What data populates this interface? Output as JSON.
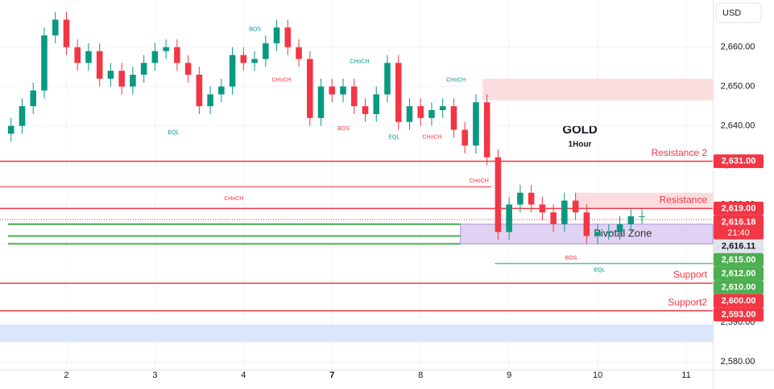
{
  "chart_data": {
    "type": "candlestick",
    "title": "GOLD",
    "subtitle": "1Hour",
    "currency": "USD",
    "xlim": [
      1.25,
      9.3
    ],
    "xticks": [
      2,
      3,
      4,
      {
        "value": 5,
        "label": "7"
      },
      {
        "value": 6,
        "label": "8"
      },
      {
        "value": 7,
        "label": "9"
      },
      {
        "value": 8,
        "label": "10"
      },
      {
        "value": 9,
        "label": "11"
      }
    ],
    "ylim": [
      2578,
      2672
    ],
    "yticks": [
      {
        "value": 2580,
        "label": "2,580.00"
      },
      {
        "value": 2590,
        "label": "2,590.00"
      },
      {
        "value": 2600,
        "label": "2,600.00"
      },
      {
        "value": 2610,
        "label": "2,610.00"
      },
      {
        "value": 2620,
        "label": "2,620.00"
      },
      {
        "value": 2630,
        "label": "2,630.00"
      },
      {
        "value": 2640,
        "label": "2,640.00"
      },
      {
        "value": 2650,
        "label": "2,650.00"
      },
      {
        "value": 2660,
        "label": "2,660.00"
      }
    ],
    "up_color": "#089981",
    "down_color": "#f23645",
    "x": [
      1.375,
      1.5,
      1.625,
      1.75,
      1.875,
      2,
      2.125,
      2.25,
      2.375,
      2.5,
      2.625,
      2.75,
      2.875,
      3,
      3.125,
      3.25,
      3.375,
      3.5,
      3.625,
      3.75,
      3.875,
      4,
      4.125,
      4.25,
      4.375,
      4.5,
      4.625,
      4.75,
      4.875,
      5,
      5.125,
      5.25,
      5.375,
      5.5,
      5.625,
      5.75,
      5.875,
      6,
      6.125,
      6.25,
      6.375,
      6.5,
      6.625,
      6.75,
      6.875,
      7,
      7.125,
      7.25,
      7.375,
      7.5,
      7.625,
      7.75,
      7.875,
      8,
      8.125,
      8.25,
      8.375,
      8.5
    ],
    "open": [
      2638,
      2640,
      2645,
      2649,
      2663,
      2667,
      2660,
      2656,
      2659,
      2652,
      2654,
      2650,
      2653,
      2656,
      2659,
      2660,
      2656,
      2653,
      2645,
      2648,
      2650,
      2658,
      2656,
      2657,
      2661,
      2665,
      2660,
      2657,
      2642,
      2650,
      2648,
      2650,
      2645,
      2643,
      2648,
      2656,
      2641,
      2645,
      2642,
      2644,
      2645,
      2639,
      2635,
      2646,
      2632,
      2613,
      2620,
      2623,
      2620,
      2618,
      2615,
      2621,
      2618,
      2612,
      2613,
      2613,
      2615,
      2617
    ],
    "high": [
      2642,
      2647,
      2651,
      2665,
      2669,
      2669,
      2662,
      2661,
      2661,
      2656,
      2656,
      2655,
      2658,
      2661,
      2662,
      2662,
      2658,
      2655,
      2650,
      2652,
      2660,
      2660,
      2659,
      2663,
      2667,
      2667,
      2662,
      2659,
      2652,
      2652,
      2652,
      2652,
      2647,
      2650,
      2658,
      2658,
      2647,
      2647,
      2646,
      2647,
      2647,
      2641,
      2648,
      2648,
      2634,
      2622,
      2625,
      2625,
      2622,
      2620,
      2623,
      2623,
      2620,
      2615,
      2615,
      2617,
      2619,
      2619
    ],
    "low": [
      2636,
      2638,
      2643,
      2647,
      2661,
      2658,
      2654,
      2654,
      2650,
      2650,
      2648,
      2648,
      2651,
      2654,
      2657,
      2654,
      2651,
      2643,
      2643,
      2646,
      2648,
      2654,
      2654,
      2655,
      2659,
      2658,
      2655,
      2640,
      2640,
      2646,
      2646,
      2643,
      2641,
      2641,
      2646,
      2639,
      2639,
      2640,
      2640,
      2642,
      2637,
      2633,
      2633,
      2630,
      2611,
      2611,
      2618,
      2618,
      2616,
      2613,
      2613,
      2616,
      2610,
      2610,
      2611,
      2611,
      2613,
      2615
    ],
    "close": [
      2640,
      2645,
      2649,
      2663,
      2667,
      2660,
      2656,
      2659,
      2652,
      2654,
      2650,
      2653,
      2656,
      2659,
      2660,
      2656,
      2653,
      2645,
      2648,
      2650,
      2658,
      2656,
      2657,
      2661,
      2665,
      2660,
      2657,
      2642,
      2650,
      2648,
      2650,
      2645,
      2643,
      2648,
      2656,
      2641,
      2645,
      2642,
      2644,
      2645,
      2639,
      2635,
      2646,
      2632,
      2613,
      2620,
      2623,
      2620,
      2618,
      2615,
      2621,
      2618,
      2612,
      2613,
      2613,
      2615,
      2617,
      2617
    ],
    "levels": [
      {
        "name": "Resistance 2",
        "value": 2631,
        "label": "2,631.00",
        "color": "#f23645"
      },
      {
        "name": "Resistance",
        "value": 2619,
        "label": "2,619.00",
        "color": "#f23645"
      },
      {
        "name": "Support",
        "value": 2600,
        "label": "2,600.00",
        "color": "#f23645"
      },
      {
        "name": "Support2",
        "value": 2593,
        "label": "2,593.00",
        "color": "#f23645"
      }
    ],
    "green_lines": [
      {
        "value": 2615,
        "label": "2,615.00",
        "x0": 1.34,
        "x1": 6.45,
        "color": "#4caf50"
      },
      {
        "value": 2612,
        "label": "2,612.00",
        "x0": 1.34,
        "x1": 6.45,
        "color": "#4caf50"
      },
      {
        "value": 2610,
        "label": "2,610.00",
        "x0": 1.34,
        "x1": 6.45,
        "color": "#4caf50"
      }
    ],
    "current_price": {
      "value": 2616.18,
      "label": "2,616.18",
      "countdown": "21:40",
      "color": "#f23645"
    },
    "pivot": {
      "name": "Pivotal Zone",
      "low": 2610,
      "high": 2615,
      "x0": 6.45,
      "value": 2616.11,
      "label": "2,616.11",
      "color": "#d9c8ef"
    },
    "zones": [
      {
        "low": 2646.5,
        "high": 2652,
        "x0": 6.7,
        "color": "#fbd9dc"
      },
      {
        "low": 2619,
        "high": 2623,
        "x0": 7.75,
        "color": "#fbd9dc"
      },
      {
        "low": 2585,
        "high": 2589.5,
        "x0": 1.25,
        "color": "#d6e4fb"
      }
    ],
    "lines": [
      {
        "value": 2624.5,
        "x0": 1.25,
        "x1": 6.8,
        "color": "#f23645"
      },
      {
        "value": 2605,
        "x0": 6.84,
        "x1": 9.3,
        "color": "#089981"
      }
    ],
    "annotations": [
      {
        "text": "BOS",
        "x": 4.13,
        "y": 2664.5,
        "color": "#089981"
      },
      {
        "text": "CHoCH",
        "x": 4.43,
        "y": 2651.6,
        "color": "#f23645"
      },
      {
        "text": "CHoCH",
        "x": 5.31,
        "y": 2656.3,
        "color": "#089981"
      },
      {
        "text": "EQL",
        "x": 3.21,
        "y": 2638.3,
        "color": "#089981"
      },
      {
        "text": "BOS",
        "x": 5.13,
        "y": 2639.3,
        "color": "#f23645"
      },
      {
        "text": "EQL",
        "x": 5.7,
        "y": 2637.1,
        "color": "#089981"
      },
      {
        "text": "CHoCH",
        "x": 6.4,
        "y": 2651.6,
        "color": "#089981"
      },
      {
        "text": "CHoCH",
        "x": 6.13,
        "y": 2637.1,
        "color": "#f23645"
      },
      {
        "text": "CHoCH",
        "x": 6.66,
        "y": 2626,
        "color": "#f23645"
      },
      {
        "text": "CHoCH",
        "x": 3.89,
        "y": 2621.5,
        "color": "#f23645"
      },
      {
        "text": "BOS",
        "x": 7.7,
        "y": 2606.4,
        "color": "#f23645"
      },
      {
        "text": "EQL",
        "x": 8.02,
        "y": 2603.3,
        "color": "#089981"
      }
    ]
  }
}
